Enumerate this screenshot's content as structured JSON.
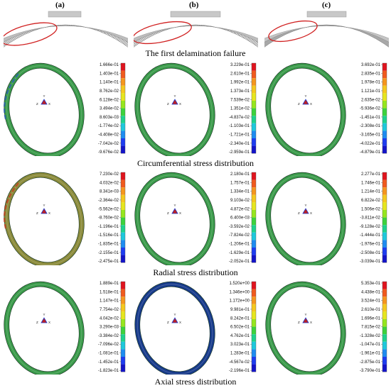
{
  "columns": [
    "(a)",
    "(b)",
    "(c)"
  ],
  "captions": {
    "delamination": "The first delamination failure",
    "circumferential": "Circumferential stress distribution",
    "radial": "Radial stress distribution",
    "axial": "Axial stress distribution"
  },
  "triad": {
    "y": "Y",
    "z": "Z",
    "x": "X"
  },
  "colors": {
    "ring_green": "#3a9a4a",
    "ring_dark_blue": "#173a8a",
    "ring_olive": "#8a8a3a",
    "delam_highlight": "#d02020"
  },
  "legend_colors": [
    "#e0141e",
    "#f05a1e",
    "#f5961e",
    "#f5c81e",
    "#e6e61e",
    "#96e61e",
    "#3cd23c",
    "#1ed28c",
    "#1ec8dc",
    "#1e8cf0",
    "#1e3cf0",
    "#1414c8"
  ],
  "legends": {
    "circ": {
      "a": [
        "1.666e-01",
        "1.403e-01",
        "1.140e-01",
        "8.762e-02",
        "6.128e-02",
        "3.494e-02",
        "8.603e-03",
        "-1.774e-02",
        "-4.408e-02",
        "-7.042e-02",
        "-9.676e-02"
      ],
      "b": [
        "3.229e-01",
        "2.610e-01",
        "1.992e-01",
        "1.373e-01",
        "7.539e-02",
        "1.351e-02",
        "-4.837e-02",
        "-1.103e-01",
        "-1.721e-01",
        "-2.340e-01",
        "-2.959e-01"
      ],
      "c": [
        "3.692e-01",
        "2.835e-01",
        "1.978e-01",
        "1.121e-01",
        "2.635e-02",
        "-5.936e-02",
        "-1.451e-01",
        "-2.308e-01",
        "-3.165e-01",
        "-4.022e-01",
        "-4.879e-01"
      ]
    },
    "radial": {
      "a": [
        "7.230e-02",
        "4.032e-02",
        "8.341e-03",
        "-2.364e-02",
        "-5.562e-02",
        "-8.760e-02",
        "-1.196e-01",
        "-1.516e-01",
        "-1.835e-01",
        "-2.155e-01",
        "-2.475e-01"
      ],
      "b": [
        "2.180e-01",
        "1.757e-01",
        "1.334e-01",
        "9.103e-02",
        "4.872e-02",
        "6.400e-03",
        "-3.592e-02",
        "-7.824e-02",
        "-1.206e-01",
        "-1.629e-01",
        "-2.052e-01"
      ],
      "c": [
        "2.277e-01",
        "1.746e-01",
        "1.214e-01",
        "6.822e-02",
        "1.506e-02",
        "-3.811e-02",
        "-9.128e-02",
        "-1.444e-01",
        "-1.976e-01",
        "-2.508e-01",
        "-3.039e-01"
      ]
    },
    "axial": {
      "a": [
        "1.889e-01",
        "1.518e-01",
        "1.147e-01",
        "7.754e-02",
        "4.042e-02",
        "3.290e-03",
        "-3.384e-02",
        "-7.096e-02",
        "-1.081e-01",
        "-1.452e-01",
        "-1.823e-01"
      ],
      "b": [
        "1.520e+00",
        "1.346e+00",
        "1.172e+00",
        "9.981e-01",
        "8.242e-01",
        "6.502e-01",
        "4.762e-01",
        "3.023e-01",
        "1.283e-01",
        "-4.567e-02",
        "-2.196e-01"
      ],
      "c": [
        "5.353e-01",
        "4.438e-01",
        "3.524e-01",
        "2.610e-01",
        "1.696e-01",
        "7.815e-02",
        "-1.328e-02",
        "-1.047e-01",
        "-1.961e-01",
        "-2.875e-01",
        "-3.790e-01"
      ]
    }
  }
}
